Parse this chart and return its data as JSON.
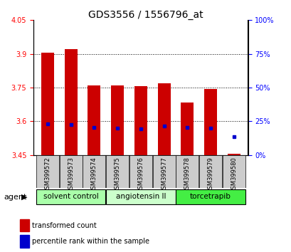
{
  "title": "GDS3556 / 1556796_at",
  "samples": [
    "GSM399572",
    "GSM399573",
    "GSM399574",
    "GSM399575",
    "GSM399576",
    "GSM399577",
    "GSM399578",
    "GSM399579",
    "GSM399580"
  ],
  "bar_values": [
    3.905,
    3.92,
    3.76,
    3.76,
    3.757,
    3.768,
    3.685,
    3.745,
    3.455
  ],
  "blue_marker_values": [
    3.588,
    3.585,
    3.574,
    3.57,
    3.565,
    3.58,
    3.572,
    3.568,
    3.53
  ],
  "bar_base": 3.45,
  "ylim_left": [
    3.45,
    4.05
  ],
  "ylim_right": [
    0,
    100
  ],
  "yticks_left": [
    3.45,
    3.6,
    3.75,
    3.9,
    4.05
  ],
  "ytick_labels_left": [
    "3.45",
    "3.6",
    "3.75",
    "3.9",
    "4.05"
  ],
  "yticks_right": [
    0,
    25,
    50,
    75,
    100
  ],
  "ytick_labels_right": [
    "0%",
    "25%",
    "50%",
    "75%",
    "100%"
  ],
  "bar_color": "#cc0000",
  "blue_color": "#0000cc",
  "groups": [
    {
      "label": "solvent control",
      "start": 0,
      "end": 3,
      "color": "#aaffaa"
    },
    {
      "label": "angiotensin II",
      "start": 3,
      "end": 6,
      "color": "#ccffcc"
    },
    {
      "label": "torcetrapib",
      "start": 6,
      "end": 9,
      "color": "#44ee44"
    }
  ],
  "agent_label": "agent",
  "legend_items": [
    "transformed count",
    "percentile rank within the sample"
  ],
  "bg_color": "#ffffff",
  "plot_bg": "#ffffff",
  "bar_width": 0.55,
  "title_fontsize": 10,
  "tick_fontsize": 7,
  "sample_fontsize": 6,
  "group_fontsize": 7.5,
  "legend_fontsize": 7,
  "agent_fontsize": 8
}
